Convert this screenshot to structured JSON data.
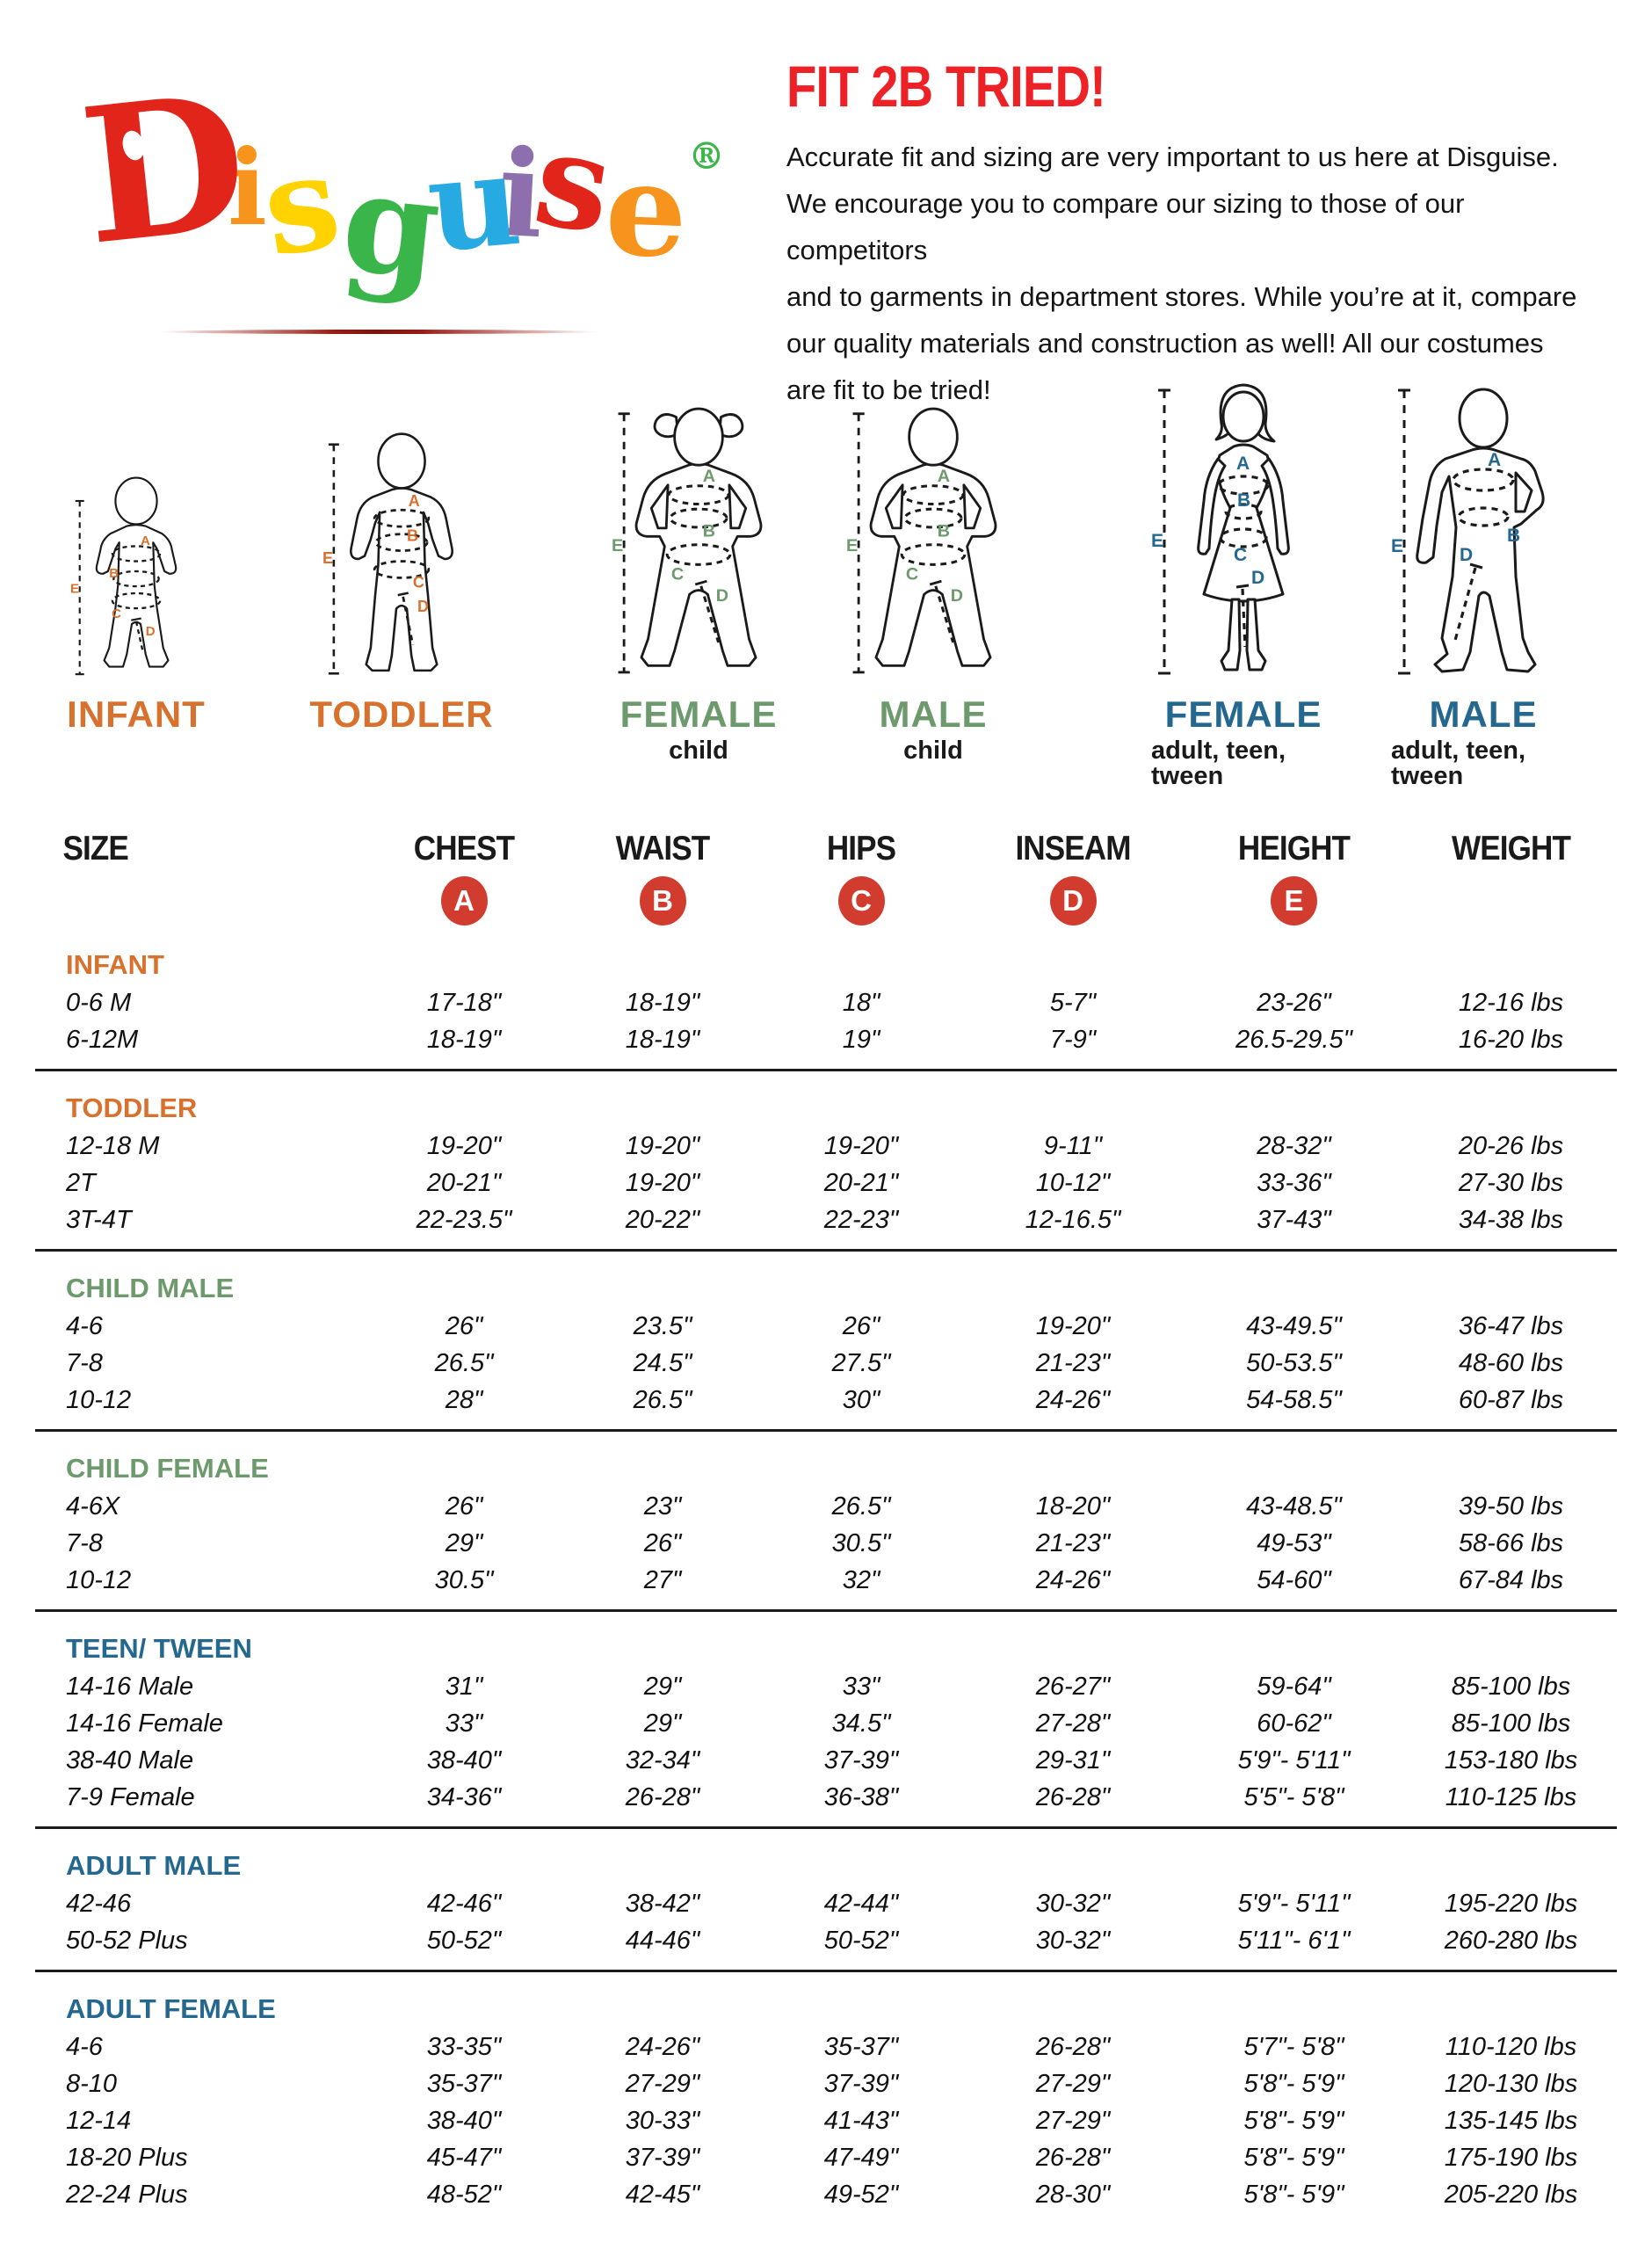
{
  "logo": {
    "brand": "Disguise",
    "letters": [
      {
        "char": "D",
        "color": "#E1251B"
      },
      {
        "char": "i",
        "color": "#F7941D"
      },
      {
        "char": "s",
        "color": "#FFD200"
      },
      {
        "char": "g",
        "color": "#39B54A"
      },
      {
        "char": "u",
        "color": "#27AAE1"
      },
      {
        "char": "i",
        "color": "#8E6FAE"
      },
      {
        "char": "s",
        "color": "#E1251B"
      },
      {
        "char": "e",
        "color": "#F7941D"
      }
    ],
    "registered_mark": "®",
    "registered_color": "#39B54A"
  },
  "intro": {
    "title": "FIT 2B TRIED!",
    "title_color": "#EC2227",
    "lines": [
      "Accurate fit and sizing are very important to us here at Disguise.",
      "We encourage you to compare our sizing to those of our competitors",
      "and to garments in department stores. While you’re at it, compare",
      "our quality materials and construction as well! All our costumes",
      "are fit to be tried!"
    ]
  },
  "figures": [
    {
      "id": "infant",
      "label": "INFANT",
      "sublabel": "",
      "accent": "#D9712E",
      "letters": [
        "A",
        "B",
        "C",
        "D",
        "E"
      ]
    },
    {
      "id": "toddler",
      "label": "TODDLER",
      "sublabel": "",
      "accent": "#D9712E",
      "letters": [
        "A",
        "B",
        "C",
        "D",
        "E"
      ]
    },
    {
      "id": "female-child",
      "label": "FEMALE",
      "sublabel": "child",
      "accent": "#6C9A6C",
      "letters": [
        "A",
        "B",
        "C",
        "D",
        "E"
      ]
    },
    {
      "id": "male-child",
      "label": "MALE",
      "sublabel": "child",
      "accent": "#6C9A6C",
      "letters": [
        "A",
        "B",
        "C",
        "D",
        "E"
      ]
    },
    {
      "id": "female-adult",
      "label": "FEMALE",
      "sublabel": "adult, teen, tween",
      "accent": "#25688F",
      "letters": [
        "A",
        "B",
        "C",
        "D",
        "E"
      ]
    },
    {
      "id": "male-adult",
      "label": "MALE",
      "sublabel": "adult, teen, tween",
      "accent": "#25688F",
      "letters": [
        "A",
        "B",
        "D",
        "E"
      ]
    }
  ],
  "size_table": {
    "columns": [
      "SIZE",
      "CHEST",
      "WAIST",
      "HIPS",
      "INSEAM",
      "HEIGHT",
      "WEIGHT"
    ],
    "measure_badges": [
      "A",
      "B",
      "C",
      "D",
      "E"
    ],
    "badge_color": "#D13C2E",
    "sections": [
      {
        "name": "INFANT",
        "color": "#D9712E",
        "rows": [
          [
            "0-6 M",
            "17-18\"",
            "18-19\"",
            "18\"",
            "5-7\"",
            "23-26\"",
            "12-16 lbs"
          ],
          [
            "6-12M",
            "18-19\"",
            "18-19\"",
            "19\"",
            "7-9\"",
            "26.5-29.5\"",
            "16-20 lbs"
          ]
        ]
      },
      {
        "name": "TODDLER",
        "color": "#D9712E",
        "rows": [
          [
            "12-18 M",
            "19-20\"",
            "19-20\"",
            "19-20\"",
            "9-11\"",
            "28-32\"",
            "20-26 lbs"
          ],
          [
            "2T",
            "20-21\"",
            "19-20\"",
            "20-21\"",
            "10-12\"",
            "33-36\"",
            "27-30 lbs"
          ],
          [
            "3T-4T",
            "22-23.5\"",
            "20-22\"",
            "22-23\"",
            "12-16.5\"",
            "37-43\"",
            "34-38 lbs"
          ]
        ]
      },
      {
        "name": "CHILD MALE",
        "color": "#6C9A6C",
        "rows": [
          [
            "4-6",
            "26\"",
            "23.5\"",
            "26\"",
            "19-20\"",
            "43-49.5\"",
            "36-47 lbs"
          ],
          [
            "7-8",
            "26.5\"",
            "24.5\"",
            "27.5\"",
            "21-23\"",
            "50-53.5\"",
            "48-60 lbs"
          ],
          [
            "10-12",
            "28\"",
            "26.5\"",
            "30\"",
            "24-26\"",
            "54-58.5\"",
            "60-87 lbs"
          ]
        ]
      },
      {
        "name": "CHILD FEMALE",
        "color": "#6C9A6C",
        "rows": [
          [
            "4-6X",
            "26\"",
            "23\"",
            "26.5\"",
            "18-20\"",
            "43-48.5\"",
            "39-50 lbs"
          ],
          [
            "7-8",
            "29\"",
            "26\"",
            "30.5\"",
            "21-23\"",
            "49-53\"",
            "58-66 lbs"
          ],
          [
            "10-12",
            "30.5\"",
            "27\"",
            "32\"",
            "24-26\"",
            "54-60\"",
            "67-84 lbs"
          ]
        ]
      },
      {
        "name": "TEEN/ TWEEN",
        "color": "#25688F",
        "rows": [
          [
            "14-16 Male",
            "31\"",
            "29\"",
            "33\"",
            "26-27\"",
            "59-64\"",
            "85-100 lbs"
          ],
          [
            "14-16 Female",
            "33\"",
            "29\"",
            "34.5\"",
            "27-28\"",
            "60-62\"",
            "85-100 lbs"
          ],
          [
            "38-40 Male",
            "38-40\"",
            "32-34\"",
            "37-39\"",
            "29-31\"",
            "5'9\"- 5'11\"",
            "153-180 lbs"
          ],
          [
            "7-9 Female",
            "34-36\"",
            "26-28\"",
            "36-38\"",
            "26-28\"",
            "5'5\"- 5'8\"",
            "110-125 lbs"
          ]
        ]
      },
      {
        "name": "ADULT MALE",
        "color": "#25688F",
        "rows": [
          [
            "42-46",
            "42-46\"",
            "38-42\"",
            "42-44\"",
            "30-32\"",
            "5'9\"- 5'11\"",
            "195-220 lbs"
          ],
          [
            "50-52 Plus",
            "50-52\"",
            "44-46\"",
            "50-52\"",
            "30-32\"",
            "5'11\"- 6'1\"",
            "260-280 lbs"
          ]
        ]
      },
      {
        "name": "ADULT FEMALE",
        "color": "#25688F",
        "rows": [
          [
            "4-6",
            "33-35\"",
            "24-26\"",
            "35-37\"",
            "26-28\"",
            "5'7\"- 5'8\"",
            "110-120 lbs"
          ],
          [
            "8-10",
            "35-37\"",
            "27-29\"",
            "37-39\"",
            "27-29\"",
            "5'8\"- 5'9\"",
            "120-130 lbs"
          ],
          [
            "12-14",
            "38-40\"",
            "30-33\"",
            "41-43\"",
            "27-29\"",
            "5'8\"- 5'9\"",
            "135-145 lbs"
          ],
          [
            "18-20 Plus",
            "45-47\"",
            "37-39\"",
            "47-49\"",
            "26-28\"",
            "5'8\"- 5'9\"",
            "175-190 lbs"
          ],
          [
            "22-24 Plus",
            "48-52\"",
            "42-45\"",
            "49-52\"",
            "28-30\"",
            "5'8\"- 5'9\"",
            "205-220 lbs"
          ]
        ]
      }
    ]
  }
}
